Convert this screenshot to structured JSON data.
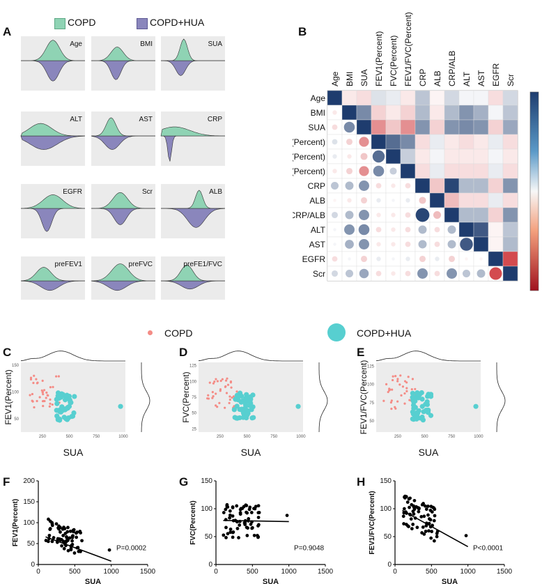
{
  "panel_labels": {
    "A": "A",
    "B": "B",
    "C": "C",
    "D": "D",
    "E": "E",
    "F": "F",
    "G": "G",
    "H": "H"
  },
  "legend_a": [
    {
      "label": "COPD",
      "color": "#8fd3b4"
    },
    {
      "label": "COPD+HUA",
      "color": "#8a86bc"
    }
  ],
  "legend_cde": [
    {
      "label": "COPD",
      "color": "#f48c86"
    },
    {
      "label": "COPD+HUA",
      "color": "#57cfd0"
    }
  ],
  "chart_data": [
    {
      "id": "A",
      "type": "area",
      "subtype": "mirrored density plots",
      "series": [
        {
          "name": "COPD",
          "color": "#8fd3b4"
        },
        {
          "name": "COPD+HUA",
          "color": "#8a86bc"
        }
      ],
      "panels": [
        "Age",
        "BMI",
        "SUA",
        "ALT",
        "AST",
        "CRP",
        "EGFR",
        "Scr",
        "ALB",
        "preFEV1",
        "preFVC",
        "preFE1/FVC"
      ]
    },
    {
      "id": "B",
      "type": "heatmap",
      "subtype": "correlation matrix (upper squares, lower circles)",
      "variables": [
        "Age",
        "BMI",
        "SUA",
        "FEV1(Percent)",
        "FVC(Percent)",
        "FEV1/FVC(Percent)",
        "CRP",
        "ALB",
        "CRP/ALB",
        "ALT",
        "AST",
        "EGFR",
        "Scr"
      ],
      "colorbar": {
        "range": [
          -1,
          1
        ],
        "ticks": [
          "1",
          "0.8",
          "0.6",
          "0.4",
          "0.2",
          "0",
          "-0.2",
          "-0.4",
          "-0.6",
          "-0.8",
          "-1"
        ]
      },
      "values": [
        [
          1,
          -0.1,
          -0.15,
          0.15,
          0.1,
          -0.1,
          0.3,
          -0.05,
          0.2,
          0.05,
          0.05,
          -0.15,
          0.2
        ],
        [
          -0.1,
          1,
          0.6,
          -0.2,
          -0.1,
          -0.2,
          0.35,
          -0.1,
          0.35,
          0.55,
          0.4,
          0.05,
          0.3
        ],
        [
          -0.15,
          0.6,
          1,
          -0.5,
          -0.25,
          -0.5,
          0.55,
          -0.2,
          0.55,
          0.6,
          0.55,
          -0.2,
          0.45
        ],
        [
          0.15,
          -0.2,
          -0.5,
          1,
          0.75,
          0.6,
          -0.15,
          0.1,
          -0.1,
          -0.15,
          -0.1,
          0.1,
          -0.15
        ],
        [
          0.1,
          -0.1,
          -0.25,
          0.75,
          1,
          0.25,
          -0.1,
          0.05,
          -0.1,
          -0.1,
          -0.1,
          0.05,
          -0.1
        ],
        [
          -0.1,
          -0.2,
          -0.5,
          0.6,
          0.25,
          1,
          -0.15,
          0.1,
          -0.15,
          -0.15,
          -0.15,
          0.1,
          -0.15
        ],
        [
          0.3,
          0.35,
          0.55,
          -0.15,
          -0.1,
          -0.15,
          1,
          -0.25,
          0.95,
          0.35,
          0.35,
          -0.2,
          0.55
        ],
        [
          -0.05,
          -0.1,
          -0.2,
          0.1,
          0.05,
          0.1,
          -0.25,
          1,
          -0.3,
          -0.15,
          -0.15,
          0.1,
          -0.15
        ],
        [
          0.2,
          0.35,
          0.55,
          -0.1,
          -0.1,
          -0.15,
          0.95,
          -0.3,
          1,
          0.35,
          0.35,
          -0.2,
          0.55
        ],
        [
          0.05,
          0.55,
          0.6,
          -0.15,
          -0.1,
          -0.15,
          0.35,
          -0.15,
          0.35,
          1,
          0.85,
          -0.05,
          0.3
        ],
        [
          0.05,
          0.4,
          0.55,
          -0.1,
          -0.1,
          -0.15,
          0.35,
          -0.15,
          0.35,
          0.85,
          1,
          -0.05,
          0.35
        ],
        [
          -0.15,
          0.05,
          -0.2,
          0.1,
          0.05,
          0.1,
          -0.2,
          0.1,
          -0.2,
          -0.05,
          -0.05,
          1,
          -0.8
        ],
        [
          0.2,
          0.3,
          0.45,
          -0.15,
          -0.1,
          -0.15,
          0.55,
          -0.15,
          0.55,
          0.3,
          0.35,
          -0.8,
          1
        ]
      ]
    },
    {
      "id": "C",
      "type": "scatter",
      "xlabel": "SUA",
      "ylabel": "FEV1(Percent)",
      "xticks": [
        250,
        500,
        750,
        1000
      ],
      "yticks": [
        50,
        100,
        150
      ],
      "xlim": [
        50,
        1020
      ],
      "ylim": [
        25,
        155
      ]
    },
    {
      "id": "D",
      "type": "scatter",
      "xlabel": "SUA",
      "ylabel": "FVC(Percent)",
      "xticks": [
        250,
        500,
        750,
        1000
      ],
      "yticks": [
        25,
        50,
        75,
        100,
        125
      ],
      "xlim": [
        50,
        1020
      ],
      "ylim": [
        20,
        130
      ]
    },
    {
      "id": "E",
      "type": "scatter",
      "xlabel": "SUA",
      "ylabel": "FEV1/FVC(Percent)",
      "xticks": [
        250,
        500,
        750,
        1000
      ],
      "yticks": [
        50,
        75,
        100,
        125
      ],
      "xlim": [
        50,
        1020
      ],
      "ylim": [
        35,
        130
      ]
    },
    {
      "id": "F",
      "type": "scatter",
      "xlabel": "SUA",
      "ylabel": "FEV1(Percent)",
      "xlim": [
        0,
        1500
      ],
      "ylim": [
        0,
        200
      ],
      "xticks": [
        0,
        500,
        1000,
        1500
      ],
      "yticks": [
        0,
        50,
        100,
        150,
        200
      ],
      "annotation": "P=0.0002",
      "fit": {
        "x": [
          100,
          1000
        ],
        "y": [
          66,
          8
        ]
      }
    },
    {
      "id": "G",
      "type": "scatter",
      "xlabel": "SUA",
      "ylabel": "FVC(Percent)",
      "xlim": [
        0,
        1500
      ],
      "ylim": [
        0,
        150
      ],
      "xticks": [
        0,
        500,
        1000,
        1500
      ],
      "yticks": [
        0,
        50,
        100,
        150
      ],
      "annotation": "P=0.9048",
      "fit": {
        "x": [
          100,
          1000
        ],
        "y": [
          79,
          77
        ]
      }
    },
    {
      "id": "H",
      "type": "scatter",
      "xlabel": "SUA",
      "ylabel": "FEV1/FVC(Percent)",
      "xlim": [
        0,
        1500
      ],
      "ylim": [
        0,
        150
      ],
      "xticks": [
        0,
        500,
        1000,
        1500
      ],
      "yticks": [
        0,
        50,
        100,
        150
      ],
      "annotation": "P<0.0001",
      "fit": {
        "x": [
          100,
          1000
        ],
        "y": [
          97,
          32
        ]
      }
    }
  ]
}
